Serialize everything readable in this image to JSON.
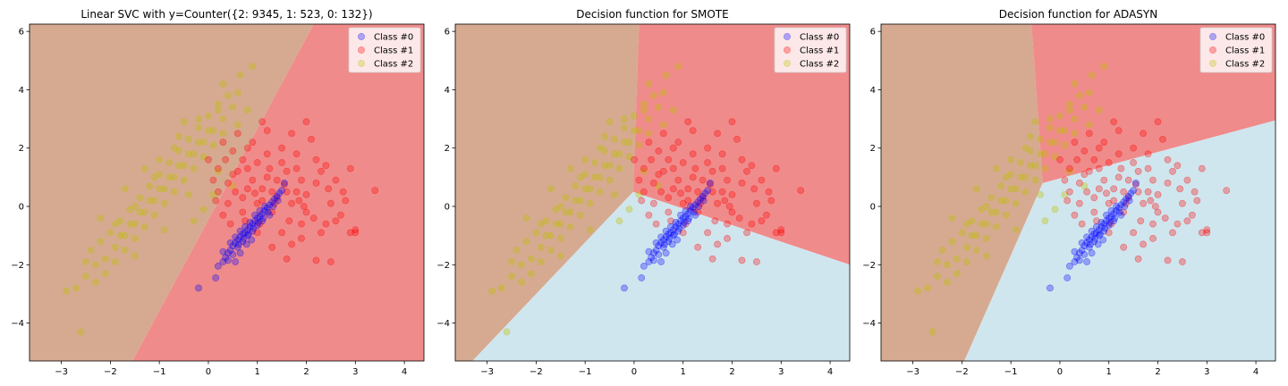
{
  "colors": {
    "region_class_0": "#d0e6ee",
    "region_class_1": "#f08b8b",
    "region_class_2": "#d6aa91",
    "points_class_0": "#0000ff",
    "points_class_1": "#ff0000",
    "points_class_2": "#bfbf00"
  },
  "chart_data": [
    {
      "type": "scatter",
      "title": "Linear SVC with y=Counter({2: 9345, 1: 523, 0: 132})",
      "xlim": [
        -3.65,
        4.4
      ],
      "ylim": [
        -5.3,
        6.25
      ],
      "xticks": [
        -3,
        -2,
        -1,
        0,
        1,
        2,
        3,
        4
      ],
      "yticks": [
        -4,
        -2,
        0,
        2,
        4,
        6
      ],
      "legend": [
        "Class #0",
        "Class #1",
        "Class #2"
      ],
      "legend_position": "top-right",
      "regions": [
        {
          "class": 2,
          "polygon": [
            [
              -3.65,
              6.25
            ],
            [
              2.15,
              6.25
            ],
            [
              -1.55,
              -5.3
            ],
            [
              -3.65,
              -5.3
            ]
          ]
        },
        {
          "class": 1,
          "polygon": [
            [
              2.15,
              6.25
            ],
            [
              4.4,
              6.25
            ],
            [
              4.4,
              -5.3
            ],
            [
              -1.55,
              -5.3
            ]
          ]
        }
      ]
    },
    {
      "type": "scatter",
      "title": "Decision function for SMOTE",
      "xlim": [
        -3.65,
        4.4
      ],
      "ylim": [
        -5.3,
        6.25
      ],
      "xticks": [
        -3,
        -2,
        -1,
        0,
        1,
        2,
        3,
        4
      ],
      "yticks": [
        -4,
        -2,
        0,
        2,
        4,
        6
      ],
      "legend": [
        "Class #0",
        "Class #1",
        "Class #2"
      ],
      "legend_position": "top-right",
      "regions": [
        {
          "class": 2,
          "polygon": [
            [
              -3.65,
              6.25
            ],
            [
              0.1,
              6.25
            ],
            [
              -0.02,
              0.5
            ],
            [
              -3.3,
              -5.3
            ],
            [
              -3.65,
              -5.3
            ]
          ]
        },
        {
          "class": 1,
          "polygon": [
            [
              0.1,
              6.25
            ],
            [
              4.4,
              6.25
            ],
            [
              4.4,
              -2.0
            ],
            [
              -0.02,
              0.5
            ]
          ]
        },
        {
          "class": 0,
          "polygon": [
            [
              -0.02,
              0.5
            ],
            [
              4.4,
              -2.0
            ],
            [
              4.4,
              -5.3
            ],
            [
              -3.3,
              -5.3
            ]
          ]
        }
      ]
    },
    {
      "type": "scatter",
      "title": "Decision function for ADASYN",
      "xlim": [
        -3.65,
        4.4
      ],
      "ylim": [
        -5.3,
        6.25
      ],
      "xticks": [
        -3,
        -2,
        -1,
        0,
        1,
        2,
        3,
        4
      ],
      "yticks": [
        -4,
        -2,
        0,
        2,
        4,
        6
      ],
      "legend": [
        "Class #0",
        "Class #1",
        "Class #2"
      ],
      "legend_position": "top-right",
      "regions": [
        {
          "class": 2,
          "polygon": [
            [
              -3.65,
              6.25
            ],
            [
              -0.58,
              6.25
            ],
            [
              -0.35,
              0.8
            ],
            [
              -1.95,
              -5.3
            ],
            [
              -3.65,
              -5.3
            ]
          ]
        },
        {
          "class": 1,
          "polygon": [
            [
              -0.58,
              6.25
            ],
            [
              4.4,
              6.25
            ],
            [
              4.4,
              2.95
            ],
            [
              -0.35,
              0.8
            ]
          ]
        },
        {
          "class": 0,
          "polygon": [
            [
              -0.35,
              0.8
            ],
            [
              4.4,
              2.95
            ],
            [
              4.4,
              -5.3
            ],
            [
              -1.95,
              -5.3
            ]
          ]
        }
      ]
    }
  ],
  "scatter_data": {
    "class_0": [
      [
        -0.2,
        -2.8
      ],
      [
        0.15,
        -2.45
      ],
      [
        0.2,
        -2.05
      ],
      [
        0.3,
        -1.9
      ],
      [
        0.35,
        -1.75
      ],
      [
        0.4,
        -1.6
      ],
      [
        0.45,
        -1.5
      ],
      [
        0.5,
        -1.35
      ],
      [
        0.55,
        -1.25
      ],
      [
        0.6,
        -1.15
      ],
      [
        0.65,
        -1.05
      ],
      [
        0.7,
        -0.95
      ],
      [
        0.75,
        -0.9
      ],
      [
        0.8,
        -0.8
      ],
      [
        0.85,
        -0.7
      ],
      [
        0.9,
        -0.6
      ],
      [
        0.95,
        -0.5
      ],
      [
        1.0,
        -0.4
      ],
      [
        1.05,
        -0.35
      ],
      [
        1.1,
        -0.25
      ],
      [
        1.15,
        -0.15
      ],
      [
        1.2,
        -0.05
      ],
      [
        1.25,
        0.05
      ],
      [
        1.3,
        0.15
      ],
      [
        1.35,
        0.25
      ],
      [
        1.4,
        0.35
      ],
      [
        1.45,
        0.45
      ],
      [
        1.5,
        0.55
      ],
      [
        1.55,
        0.8
      ],
      [
        0.6,
        -1.4
      ],
      [
        0.7,
        -1.2
      ],
      [
        0.8,
        -1.0
      ],
      [
        0.9,
        -0.85
      ],
      [
        1.0,
        -0.65
      ],
      [
        1.1,
        -0.5
      ],
      [
        0.45,
        -1.25
      ],
      [
        0.55,
        -1.05
      ],
      [
        0.65,
        -0.85
      ],
      [
        0.75,
        -0.7
      ],
      [
        0.85,
        -0.55
      ],
      [
        0.95,
        -0.3
      ],
      [
        1.05,
        -0.15
      ],
      [
        1.15,
        0.0
      ],
      [
        1.25,
        -0.3
      ],
      [
        0.3,
        -1.55
      ],
      [
        0.4,
        -1.85
      ],
      [
        0.5,
        -1.65
      ],
      [
        0.62,
        -1.3
      ],
      [
        0.72,
        -1.1
      ],
      [
        0.82,
        -0.95
      ],
      [
        0.92,
        -0.75
      ],
      [
        1.02,
        -0.55
      ],
      [
        1.12,
        -0.4
      ],
      [
        1.22,
        -0.2
      ],
      [
        1.32,
        0.0
      ],
      [
        1.42,
        0.2
      ],
      [
        0.55,
        -1.9
      ],
      [
        0.65,
        -1.6
      ],
      [
        0.78,
        -1.3
      ],
      [
        0.88,
        -1.15
      ]
    ],
    "class_1": [
      [
        0.2,
        0.5
      ],
      [
        0.4,
        0.8
      ],
      [
        0.6,
        1.2
      ],
      [
        0.8,
        0.6
      ],
      [
        1.0,
        1.5
      ],
      [
        1.2,
        1.0
      ],
      [
        1.4,
        0.3
      ],
      [
        1.6,
        1.2
      ],
      [
        1.8,
        0.5
      ],
      [
        2.0,
        -0.2
      ],
      [
        2.2,
        0.8
      ],
      [
        2.4,
        1.4
      ],
      [
        2.6,
        -0.5
      ],
      [
        2.8,
        0.2
      ],
      [
        3.0,
        -0.8
      ],
      [
        3.4,
        0.55
      ],
      [
        2.5,
        -1.9
      ],
      [
        2.2,
        -1.85
      ],
      [
        1.9,
        -0.6
      ],
      [
        1.7,
        -1.3
      ],
      [
        1.5,
        -0.9
      ],
      [
        1.3,
        -0.2
      ],
      [
        1.1,
        0.2
      ],
      [
        0.9,
        0.9
      ],
      [
        0.7,
        1.6
      ],
      [
        0.5,
        1.9
      ],
      [
        0.3,
        2.2
      ],
      [
        0.6,
        2.5
      ],
      [
        0.9,
        2.2
      ],
      [
        1.2,
        2.6
      ],
      [
        1.5,
        2.0
      ],
      [
        1.8,
        1.8
      ],
      [
        2.1,
        2.3
      ],
      [
        2.3,
        1.2
      ],
      [
        2.6,
        0.9
      ],
      [
        2.9,
        1.3
      ],
      [
        1.0,
        -0.9
      ],
      [
        1.3,
        -1.4
      ],
      [
        1.6,
        -1.8
      ],
      [
        1.9,
        -1.1
      ],
      [
        2.3,
        -0.9
      ],
      [
        0.4,
        0.1
      ],
      [
        0.7,
        0.3
      ],
      [
        1.1,
        0.6
      ],
      [
        1.4,
        0.9
      ],
      [
        1.7,
        0.1
      ],
      [
        2.0,
        0.4
      ],
      [
        0.2,
        1.3
      ],
      [
        0.5,
        1.1
      ],
      [
        0.8,
        1.3
      ],
      [
        1.2,
        1.8
      ],
      [
        1.5,
        1.5
      ],
      [
        1.8,
        1.3
      ],
      [
        2.2,
        1.6
      ],
      [
        2.5,
        0.1
      ],
      [
        2.7,
        -0.3
      ],
      [
        2.9,
        -0.9
      ],
      [
        2.4,
        -0.6
      ],
      [
        1.9,
        0.9
      ],
      [
        1.6,
        0.5
      ],
      [
        1.3,
        0.5
      ],
      [
        1.0,
        0.1
      ],
      [
        0.7,
        -0.2
      ],
      [
        0.3,
        -0.3
      ],
      [
        0.1,
        0.9
      ],
      [
        0.0,
        1.6
      ],
      [
        2.0,
        2.9
      ],
      [
        1.7,
        2.5
      ],
      [
        1.1,
        2.9
      ],
      [
        0.8,
        2.0
      ],
      [
        0.35,
        1.6
      ],
      [
        0.55,
        0.5
      ],
      [
        0.95,
        0.45
      ],
      [
        1.25,
        1.3
      ],
      [
        1.55,
        0.75
      ],
      [
        1.85,
        0.2
      ],
      [
        2.15,
        -0.4
      ],
      [
        2.45,
        0.6
      ],
      [
        2.75,
        0.5
      ],
      [
        3.0,
        -0.9
      ],
      [
        0.15,
        0.2
      ],
      [
        0.45,
        -0.6
      ],
      [
        0.75,
        -0.5
      ],
      [
        1.05,
        -0.6
      ],
      [
        1.35,
        0.1
      ],
      [
        1.65,
        -0.5
      ],
      [
        1.95,
        0.0
      ]
    ],
    "class_2": [
      [
        -2.7,
        -2.8
      ],
      [
        -2.5,
        -2.4
      ],
      [
        -2.3,
        -2.0
      ],
      [
        -2.1,
        -1.8
      ],
      [
        -1.9,
        -1.4
      ],
      [
        -1.7,
        -1.0
      ],
      [
        -1.5,
        -0.6
      ],
      [
        -1.3,
        -0.2
      ],
      [
        -1.1,
        0.2
      ],
      [
        -0.9,
        0.6
      ],
      [
        -0.7,
        1.0
      ],
      [
        -0.5,
        1.4
      ],
      [
        -0.3,
        1.8
      ],
      [
        -0.1,
        2.2
      ],
      [
        0.1,
        2.6
      ],
      [
        0.3,
        3.0
      ],
      [
        0.5,
        3.4
      ],
      [
        0.6,
        3.9
      ],
      [
        0.65,
        4.5
      ],
      [
        -2.6,
        -4.3
      ],
      [
        -2.4,
        -1.5
      ],
      [
        -2.2,
        -1.2
      ],
      [
        -2.0,
        -0.9
      ],
      [
        -1.8,
        -0.5
      ],
      [
        -1.6,
        -0.1
      ],
      [
        -1.4,
        0.3
      ],
      [
        -1.2,
        0.7
      ],
      [
        -1.0,
        1.1
      ],
      [
        -0.8,
        1.5
      ],
      [
        -0.6,
        1.9
      ],
      [
        -0.4,
        2.3
      ],
      [
        -0.2,
        2.7
      ],
      [
        0.0,
        3.1
      ],
      [
        0.2,
        3.5
      ],
      [
        0.4,
        3.8
      ],
      [
        -2.1,
        -2.3
      ],
      [
        -1.9,
        -1.9
      ],
      [
        -1.7,
        -1.5
      ],
      [
        -1.5,
        -1.1
      ],
      [
        -1.3,
        -0.7
      ],
      [
        -1.1,
        -0.3
      ],
      [
        -0.9,
        0.1
      ],
      [
        -0.7,
        0.5
      ],
      [
        -0.5,
        0.9
      ],
      [
        -0.3,
        1.3
      ],
      [
        -0.1,
        1.7
      ],
      [
        0.1,
        2.1
      ],
      [
        0.3,
        2.5
      ],
      [
        -1.6,
        -0.6
      ],
      [
        -1.4,
        -0.2
      ],
      [
        -1.2,
        0.2
      ],
      [
        -1.0,
        0.6
      ],
      [
        -0.8,
        1.0
      ],
      [
        -0.6,
        1.4
      ],
      [
        -0.4,
        1.8
      ],
      [
        -0.2,
        2.2
      ],
      [
        0.0,
        2.6
      ],
      [
        -1.8,
        -1.0
      ],
      [
        -1.0,
        1.6
      ],
      [
        -0.6,
        2.4
      ],
      [
        -0.2,
        3.0
      ],
      [
        0.2,
        3.3
      ],
      [
        -2.9,
        -2.9
      ],
      [
        -2.3,
        -2.6
      ],
      [
        -1.5,
        -1.7
      ],
      [
        -0.3,
        -0.5
      ],
      [
        -0.9,
        -0.8
      ],
      [
        0.3,
        4.2
      ],
      [
        0.9,
        4.8
      ],
      [
        -0.5,
        2.9
      ],
      [
        -1.3,
        1.3
      ],
      [
        -1.7,
        0.6
      ],
      [
        -2.2,
        -0.4
      ],
      [
        0.5,
        0.7
      ],
      [
        0.1,
        0.4
      ],
      [
        -0.1,
        -0.1
      ],
      [
        0.2,
        1.2
      ],
      [
        0.6,
        2.8
      ],
      [
        0.8,
        3.3
      ],
      [
        -0.7,
        2.0
      ],
      [
        -1.1,
        1.0
      ],
      [
        -1.5,
        0.0
      ],
      [
        -1.9,
        -0.6
      ],
      [
        -2.5,
        -1.9
      ],
      [
        -0.4,
        0.4
      ]
    ]
  }
}
